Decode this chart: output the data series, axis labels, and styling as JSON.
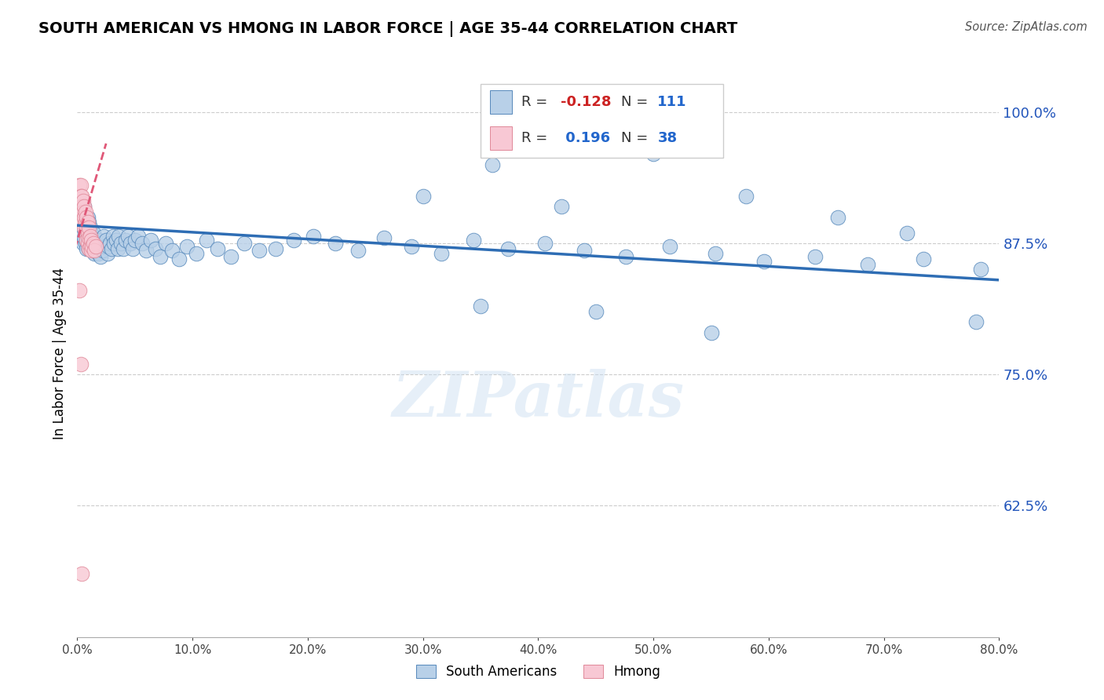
{
  "title": "SOUTH AMERICAN VS HMONG IN LABOR FORCE | AGE 35-44 CORRELATION CHART",
  "source": "Source: ZipAtlas.com",
  "ylabel": "In Labor Force | Age 35-44",
  "x_min": 0.0,
  "x_max": 0.8,
  "y_min": 0.5,
  "y_max": 1.04,
  "y_ticks": [
    0.625,
    0.75,
    0.875,
    1.0
  ],
  "y_tick_labels": [
    "62.5%",
    "75.0%",
    "87.5%",
    "100.0%"
  ],
  "x_ticks": [
    0.0,
    0.1,
    0.2,
    0.3,
    0.4,
    0.5,
    0.6,
    0.7,
    0.8
  ],
  "x_tick_labels": [
    "0.0%",
    "10.0%",
    "20.0%",
    "30.0%",
    "40.0%",
    "50.0%",
    "60.0%",
    "70.0%",
    "80.0%"
  ],
  "legend_blue_r": "-0.128",
  "legend_blue_n": "111",
  "legend_pink_r": "0.196",
  "legend_pink_n": "38",
  "blue_color": "#b8d0e8",
  "blue_edge_color": "#5588bb",
  "blue_line_color": "#2e6db4",
  "pink_color": "#f8c8d4",
  "pink_edge_color": "#e08898",
  "pink_line_color": "#e05878",
  "watermark": "ZIPatlas",
  "blue_scatter_x": [
    0.002,
    0.003,
    0.003,
    0.004,
    0.004,
    0.005,
    0.005,
    0.005,
    0.006,
    0.006,
    0.006,
    0.007,
    0.007,
    0.007,
    0.008,
    0.008,
    0.008,
    0.009,
    0.009,
    0.009,
    0.01,
    0.01,
    0.01,
    0.011,
    0.011,
    0.011,
    0.012,
    0.012,
    0.012,
    0.013,
    0.013,
    0.014,
    0.014,
    0.015,
    0.015,
    0.016,
    0.016,
    0.017,
    0.018,
    0.018,
    0.019,
    0.02,
    0.02,
    0.021,
    0.022,
    0.023,
    0.024,
    0.025,
    0.026,
    0.027,
    0.028,
    0.03,
    0.031,
    0.032,
    0.034,
    0.035,
    0.036,
    0.038,
    0.04,
    0.042,
    0.044,
    0.046,
    0.048,
    0.05,
    0.053,
    0.056,
    0.06,
    0.064,
    0.068,
    0.072,
    0.077,
    0.082,
    0.088,
    0.095,
    0.103,
    0.112,
    0.122,
    0.133,
    0.145,
    0.158,
    0.172,
    0.188,
    0.205,
    0.224,
    0.244,
    0.266,
    0.29,
    0.316,
    0.344,
    0.374,
    0.406,
    0.44,
    0.476,
    0.514,
    0.554,
    0.596,
    0.64,
    0.686,
    0.734,
    0.784,
    0.3,
    0.36,
    0.42,
    0.5,
    0.58,
    0.66,
    0.72,
    0.78,
    0.35,
    0.45,
    0.55
  ],
  "blue_scatter_y": [
    0.9,
    0.895,
    0.91,
    0.885,
    0.905,
    0.89,
    0.875,
    0.905,
    0.895,
    0.88,
    0.91,
    0.89,
    0.875,
    0.9,
    0.885,
    0.87,
    0.895,
    0.88,
    0.875,
    0.9,
    0.885,
    0.87,
    0.895,
    0.88,
    0.875,
    0.89,
    0.875,
    0.87,
    0.885,
    0.875,
    0.88,
    0.87,
    0.885,
    0.875,
    0.865,
    0.878,
    0.868,
    0.875,
    0.872,
    0.865,
    0.878,
    0.872,
    0.862,
    0.875,
    0.868,
    0.882,
    0.872,
    0.878,
    0.865,
    0.872,
    0.875,
    0.87,
    0.882,
    0.875,
    0.878,
    0.87,
    0.882,
    0.875,
    0.87,
    0.878,
    0.882,
    0.875,
    0.87,
    0.878,
    0.882,
    0.875,
    0.868,
    0.878,
    0.87,
    0.862,
    0.875,
    0.868,
    0.86,
    0.872,
    0.865,
    0.878,
    0.87,
    0.862,
    0.875,
    0.868,
    0.87,
    0.878,
    0.882,
    0.875,
    0.868,
    0.88,
    0.872,
    0.865,
    0.878,
    0.87,
    0.875,
    0.868,
    0.862,
    0.872,
    0.865,
    0.858,
    0.862,
    0.855,
    0.86,
    0.85,
    0.92,
    0.95,
    0.91,
    0.96,
    0.92,
    0.9,
    0.885,
    0.8,
    0.815,
    0.81,
    0.79
  ],
  "pink_scatter_x": [
    0.001,
    0.002,
    0.002,
    0.003,
    0.003,
    0.003,
    0.004,
    0.004,
    0.004,
    0.005,
    0.005,
    0.005,
    0.006,
    0.006,
    0.006,
    0.007,
    0.007,
    0.007,
    0.008,
    0.008,
    0.008,
    0.009,
    0.009,
    0.009,
    0.01,
    0.01,
    0.01,
    0.011,
    0.011,
    0.012,
    0.012,
    0.013,
    0.014,
    0.015,
    0.016,
    0.002,
    0.003,
    0.004
  ],
  "pink_scatter_y": [
    0.9,
    0.93,
    0.915,
    0.93,
    0.92,
    0.91,
    0.92,
    0.91,
    0.895,
    0.915,
    0.905,
    0.895,
    0.91,
    0.9,
    0.89,
    0.905,
    0.895,
    0.885,
    0.9,
    0.89,
    0.878,
    0.895,
    0.885,
    0.875,
    0.89,
    0.88,
    0.87,
    0.882,
    0.872,
    0.878,
    0.868,
    0.872,
    0.875,
    0.868,
    0.872,
    0.83,
    0.76,
    0.56
  ],
  "blue_trendline_x": [
    0.0,
    0.8
  ],
  "blue_trendline_y": [
    0.892,
    0.84
  ],
  "pink_trendline_x": [
    -0.002,
    0.025
  ],
  "pink_trendline_y": [
    0.87,
    0.97
  ]
}
